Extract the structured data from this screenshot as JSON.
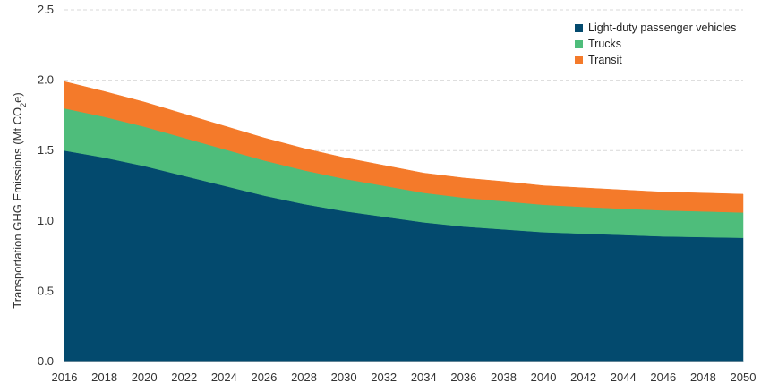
{
  "chart_data": {
    "type": "area",
    "stacked": true,
    "x": [
      2016,
      2018,
      2020,
      2022,
      2024,
      2026,
      2028,
      2030,
      2032,
      2034,
      2036,
      2038,
      2040,
      2042,
      2044,
      2046,
      2048,
      2050
    ],
    "xticks": [
      "2016",
      "2018",
      "2020",
      "2022",
      "2024",
      "2026",
      "2028",
      "2030",
      "2032",
      "2034",
      "2036",
      "2038",
      "2040",
      "2042",
      "2044",
      "2046",
      "2048",
      "2050"
    ],
    "series": [
      {
        "name": "Light-duty passenger vehicles",
        "color": "#034a6e",
        "values": [
          1.5,
          1.45,
          1.39,
          1.32,
          1.25,
          1.18,
          1.12,
          1.07,
          1.03,
          0.99,
          0.96,
          0.94,
          0.92,
          0.91,
          0.9,
          0.89,
          0.885,
          0.88
        ]
      },
      {
        "name": "Trucks",
        "color": "#4ebd7b",
        "values": [
          0.3,
          0.29,
          0.28,
          0.27,
          0.26,
          0.25,
          0.24,
          0.23,
          0.22,
          0.21,
          0.205,
          0.2,
          0.195,
          0.19,
          0.187,
          0.185,
          0.183,
          0.18
        ]
      },
      {
        "name": "Transit",
        "color": "#f47a2a",
        "values": [
          0.19,
          0.18,
          0.175,
          0.17,
          0.165,
          0.16,
          0.155,
          0.15,
          0.145,
          0.14,
          0.14,
          0.14,
          0.135,
          0.135,
          0.133,
          0.13,
          0.13,
          0.13
        ]
      }
    ],
    "yticks": [
      "0.0",
      "0.5",
      "1.0",
      "1.5",
      "2.0",
      "2.5"
    ],
    "ylim": [
      0,
      2.5
    ],
    "ylabel_main": "Transportation GHG Emissions (Mt CO",
    "ylabel_sub": "2",
    "ylabel_end": "e)",
    "grid": true,
    "legend_position": "top-right"
  }
}
